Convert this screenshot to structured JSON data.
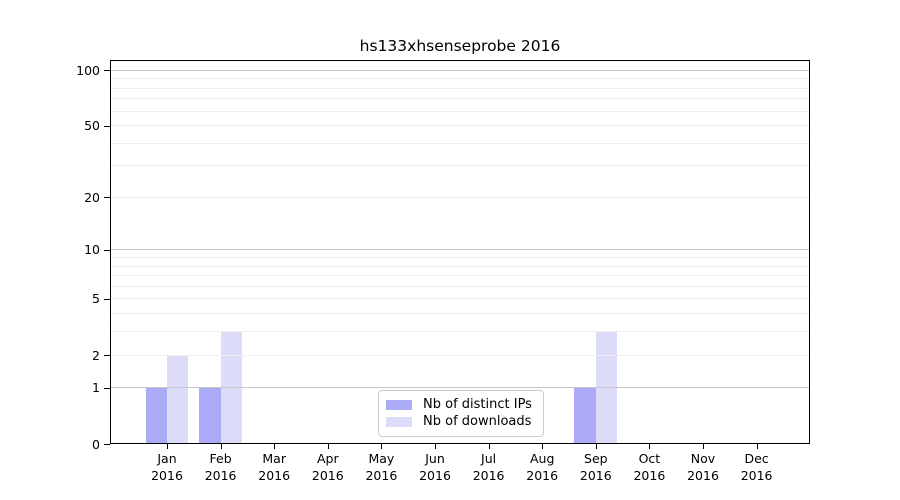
{
  "chart_data": {
    "type": "bar",
    "title": "hs133xhsenseprobe 2016",
    "year": "2016",
    "categories": [
      "Jan",
      "Feb",
      "Mar",
      "Apr",
      "May",
      "Jun",
      "Jul",
      "Aug",
      "Sep",
      "Oct",
      "Nov",
      "Dec"
    ],
    "series": [
      {
        "name": "Nb of distinct IPs",
        "color": "#aaaaf6",
        "values": [
          1,
          1,
          0,
          0,
          0,
          0,
          0,
          0,
          1,
          0,
          0,
          0
        ]
      },
      {
        "name": "Nb of downloads",
        "color": "#dcdcf9",
        "values": [
          2,
          3,
          0,
          0,
          0,
          0,
          0,
          0,
          3,
          0,
          0,
          0
        ]
      }
    ],
    "y_axis": {
      "scale": "log1p",
      "ticks": [
        0,
        1,
        2,
        5,
        10,
        20,
        50,
        100
      ],
      "major_gridlines": [
        1,
        10,
        100
      ],
      "minor_gridlines": [
        2,
        3,
        4,
        5,
        6,
        7,
        8,
        9,
        20,
        30,
        40,
        50,
        60,
        70,
        80,
        90
      ],
      "ylim": [
        0,
        114
      ],
      "grid": true
    },
    "legend_position": "lower-center",
    "colors": {
      "major_grid": "#c6c6c6",
      "minor_grid": "#ededed",
      "axis": "#000000",
      "legend_border": "#cccccc"
    }
  }
}
